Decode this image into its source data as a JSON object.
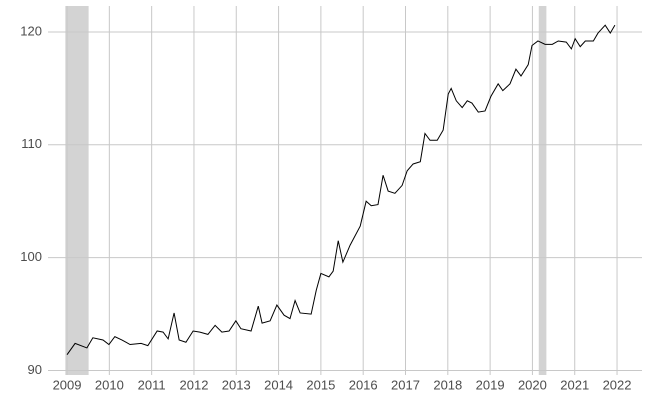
{
  "chart_data": {
    "type": "line",
    "x": [
      2009.0,
      2009.19,
      2009.47,
      2009.61,
      2009.85,
      2009.99,
      2010.13,
      2010.3,
      2010.49,
      2010.75,
      2010.91,
      2011.13,
      2011.27,
      2011.39,
      2011.53,
      2011.65,
      2011.81,
      2011.98,
      2012.14,
      2012.33,
      2012.5,
      2012.66,
      2012.83,
      2012.99,
      2013.11,
      2013.35,
      2013.52,
      2013.61,
      2013.8,
      2013.96,
      2014.13,
      2014.27,
      2014.39,
      2014.51,
      2014.77,
      2014.89,
      2015.0,
      2015.19,
      2015.29,
      2015.41,
      2015.52,
      2015.69,
      2015.93,
      2016.07,
      2016.19,
      2016.35,
      2016.47,
      2016.59,
      2016.75,
      2016.92,
      2017.04,
      2017.18,
      2017.35,
      2017.46,
      2017.58,
      2017.75,
      2017.89,
      2018.01,
      2018.08,
      2018.2,
      2018.34,
      2018.46,
      2018.57,
      2018.72,
      2018.88,
      2019.02,
      2019.19,
      2019.3,
      2019.47,
      2019.61,
      2019.73,
      2019.9,
      2019.99,
      2020.13,
      2020.3,
      2020.47,
      2020.61,
      2020.8,
      2020.92,
      2021.01,
      2021.13,
      2021.25,
      2021.44,
      2021.55,
      2021.72,
      2021.84,
      2021.95
    ],
    "values": [
      91.4,
      92.4,
      92.0,
      92.9,
      92.7,
      92.3,
      93.0,
      92.7,
      92.3,
      92.4,
      92.2,
      93.5,
      93.4,
      92.8,
      95.1,
      92.7,
      92.5,
      93.5,
      93.4,
      93.2,
      94.0,
      93.4,
      93.5,
      94.4,
      93.7,
      93.5,
      95.7,
      94.2,
      94.4,
      95.8,
      94.9,
      94.6,
      96.2,
      95.1,
      95.0,
      97.1,
      98.6,
      98.3,
      98.8,
      101.5,
      99.6,
      101.1,
      102.8,
      105.0,
      104.6,
      104.7,
      107.3,
      105.9,
      105.7,
      106.4,
      107.7,
      108.3,
      108.5,
      111.0,
      110.4,
      110.4,
      111.3,
      114.5,
      115.0,
      113.9,
      113.3,
      113.9,
      113.7,
      112.9,
      113.0,
      114.3,
      115.4,
      114.8,
      115.4,
      116.7,
      116.1,
      117.1,
      118.8,
      119.2,
      118.9,
      118.9,
      119.2,
      119.1,
      118.5,
      119.4,
      118.7,
      119.2,
      119.2,
      119.9,
      120.6,
      119.9,
      120.6
    ],
    "color": "#000000",
    "recessions": [
      [
        2008.96,
        2009.51
      ],
      [
        2020.15,
        2020.33
      ]
    ],
    "recession_color": "#d3d3d3",
    "xlim": [
      2008.55,
      2022.59
    ],
    "xticks": [
      2009,
      2010,
      2011,
      2012,
      2013,
      2014,
      2015,
      2016,
      2017,
      2018,
      2019,
      2020,
      2021,
      2022
    ],
    "ylim": [
      89.6,
      122.3
    ],
    "yticks": [
      90,
      100,
      110,
      120
    ],
    "grid": true
  }
}
